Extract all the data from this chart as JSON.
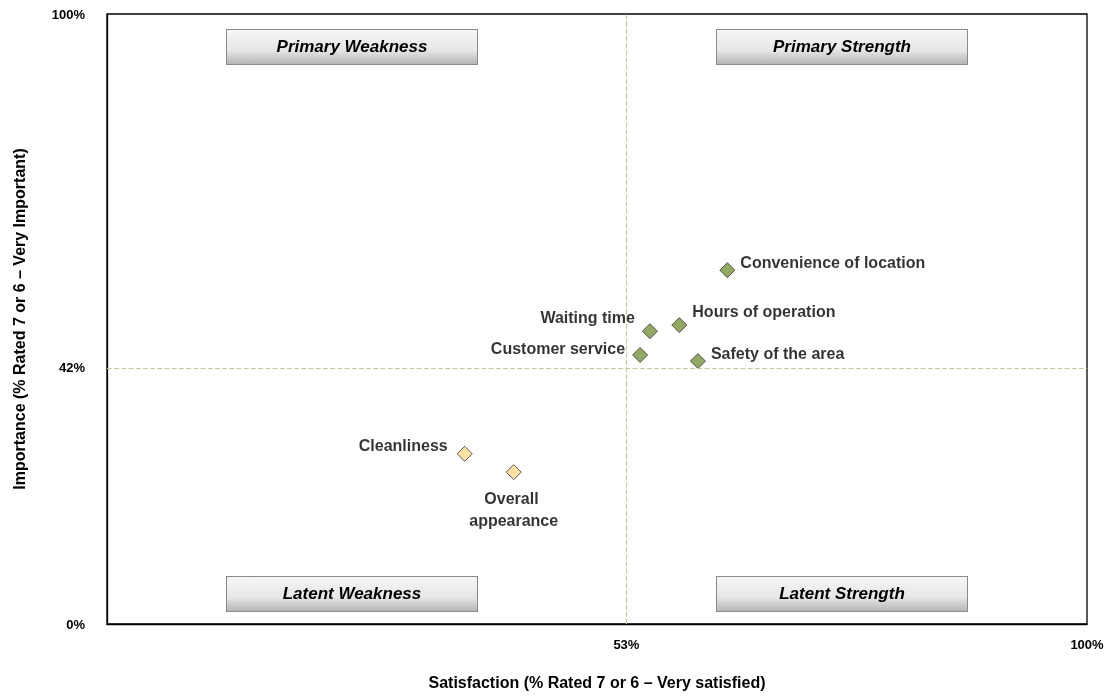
{
  "chart_data": {
    "type": "scatter",
    "xlabel": "Satisfaction (% Rated 7 or 6 – Very satisfied)",
    "ylabel": "Importance (% Rated 7 or 6 – Very Important)",
    "xlim": [
      0,
      100
    ],
    "ylim": [
      0,
      100
    ],
    "xticks": [
      {
        "value": 0,
        "label": null
      },
      {
        "value": 53,
        "label": "53%"
      },
      {
        "value": 100,
        "label": "100%"
      }
    ],
    "yticks": [
      {
        "value": 0,
        "label": "0%"
      },
      {
        "value": 42,
        "label": "42%"
      },
      {
        "value": 100,
        "label": "100%"
      }
    ],
    "marker": "diamond",
    "grid": false,
    "series": [
      {
        "color": "#77933c",
        "x": [
          63.3,
          58.4,
          55.4,
          54.4,
          60.3
        ],
        "values": [
          58.0,
          49.0,
          48.0,
          44.1,
          43.1
        ],
        "value_labels": [
          "Convenience of location",
          "Hours of operation",
          "Waiting time",
          "Customer service",
          "Safety of the area"
        ]
      },
      {
        "color": "#ffd98a",
        "x": [
          36.5,
          41.5
        ],
        "values": [
          27.9,
          24.9
        ],
        "value_labels": [
          "Cleanliness",
          "Overall appearance"
        ]
      }
    ],
    "ref_lines": [
      {
        "axis": "x",
        "value": 53,
        "color": "#c3c99b",
        "line_style": "dashed"
      },
      {
        "axis": "y",
        "value": 42,
        "color": "#c3c99b",
        "line_style": "dashed"
      }
    ],
    "annotations": [
      "Primary Weakness",
      "Primary Strength",
      "Latent Weakness",
      "Latent Strength"
    ]
  }
}
